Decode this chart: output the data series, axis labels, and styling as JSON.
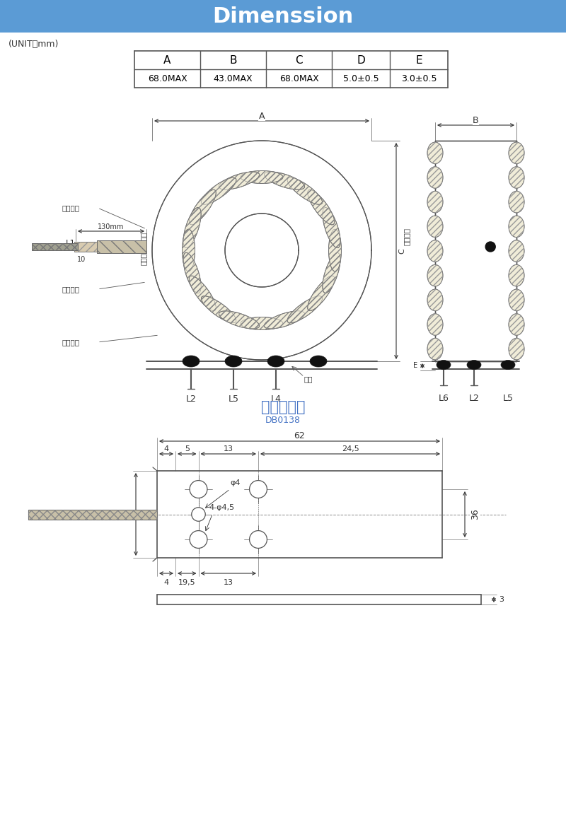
{
  "title": "Dimenssion",
  "title_bg_color": "#5b9bd5",
  "title_text_color": "#ffffff",
  "unit_label": "(UNIT：mm)",
  "table_headers": [
    "A",
    "B",
    "C",
    "D",
    "E"
  ],
  "table_values": [
    "68.0MAX",
    "43.0MAX",
    "68.0MAX",
    "5.0±0.5",
    "3.0±0.5"
  ],
  "section2_title": "底板尺寸图",
  "section2_subtitle": "DB0138",
  "bg_color": "#ffffff",
  "line_color": "#555555",
  "dim_color": "#333333",
  "blue_label_color": "#4472c4"
}
